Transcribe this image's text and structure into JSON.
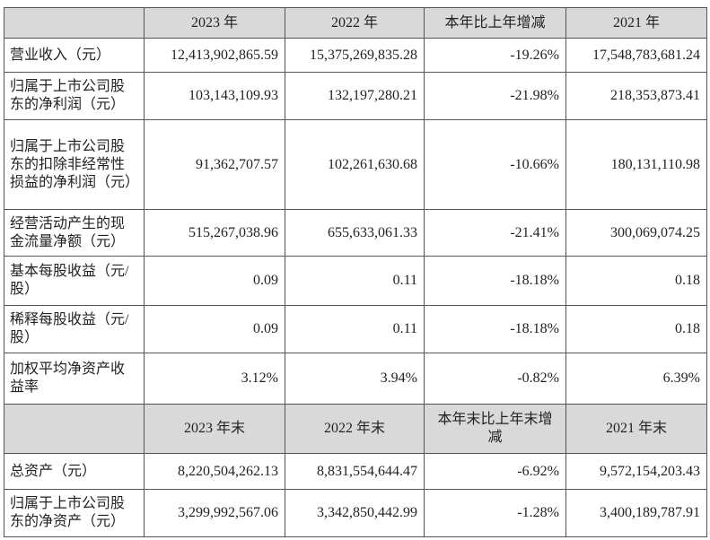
{
  "header": {
    "columns": [
      "2023 年",
      "2022 年",
      "本年比上年增减",
      "2021 年"
    ]
  },
  "rows": [
    {
      "label": "营业收入（元）",
      "values": [
        "12,413,902,865.59",
        "15,375,269,835.28",
        "-19.26%",
        "17,548,783,681.24"
      ]
    },
    {
      "label": "归属于上市公司股东的净利润（元）",
      "values": [
        "103,143,109.93",
        "132,197,280.21",
        "-21.98%",
        "218,353,873.41"
      ]
    },
    {
      "label": "归属于上市公司股东的扣除非经常性损益的净利润（元）",
      "values": [
        "91,362,707.57",
        "102,261,630.68",
        "-10.66%",
        "180,131,110.98"
      ]
    },
    {
      "label": "经营活动产生的现金流量净额（元）",
      "values": [
        "515,267,038.96",
        "655,633,061.33",
        "-21.41%",
        "300,069,074.25"
      ]
    },
    {
      "label": "基本每股收益（元/股）",
      "values": [
        "0.09",
        "0.11",
        "-18.18%",
        "0.18"
      ]
    },
    {
      "label": "稀释每股收益（元/股）",
      "values": [
        "0.09",
        "0.11",
        "-18.18%",
        "0.18"
      ]
    },
    {
      "label": "加权平均净资产收益率",
      "values": [
        "3.12%",
        "3.94%",
        "-0.82%",
        "6.39%"
      ]
    }
  ],
  "header2": {
    "columns": [
      "2023 年末",
      "2022 年末",
      "本年末比上年末增减",
      "2021 年末"
    ]
  },
  "rows2": [
    {
      "label": "总资产（元）",
      "values": [
        "8,220,504,262.13",
        "8,831,554,644.47",
        "-6.92%",
        "9,572,154,203.43"
      ]
    },
    {
      "label": "归属于上市公司股东的净资产（元）",
      "values": [
        "3,299,992,567.06",
        "3,342,850,442.99",
        "-1.28%",
        "3,400,189,787.91"
      ]
    }
  ]
}
